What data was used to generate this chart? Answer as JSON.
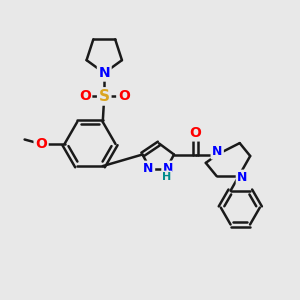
{
  "background_color": "#e8e8e8",
  "bond_color": "#1a1a1a",
  "bond_width": 1.8,
  "atom_colors": {
    "N": "#0000FF",
    "O": "#FF0000",
    "S": "#DAA520",
    "H": "#008B8B"
  },
  "figsize": [
    3.0,
    3.0
  ],
  "dpi": 100
}
